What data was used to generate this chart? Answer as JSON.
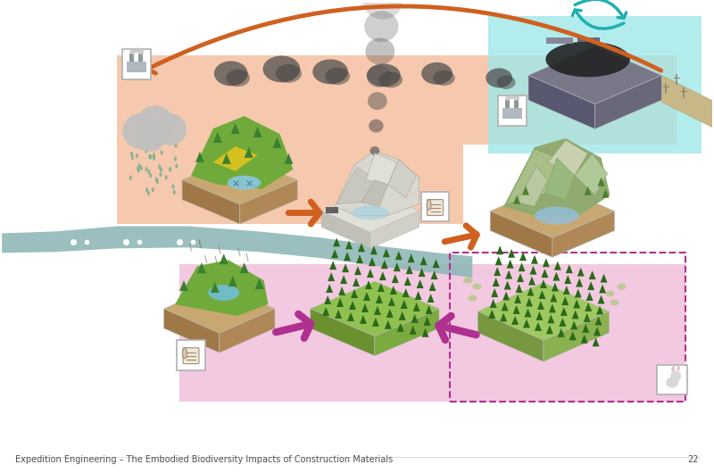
{
  "background_color": "#ffffff",
  "salmon_bg": "#f5c0a0",
  "pink_bg": "#f0b8d8",
  "cyan_bg": "#a0e8e8",
  "footer_text": "Expedition Engineering – The Embodied Biodiversity Impacts of Construction Materials",
  "page_number": "22",
  "footer_fontsize": 7,
  "arrow_orange": "#d06020",
  "arrow_pink": "#b03090",
  "arrow_cyan": "#20b0b0",
  "ground_brown": "#c0986a",
  "ground_left": "#a07850",
  "ground_right": "#b08860",
  "grass_top": "#88bb50",
  "water_river": "#90b8b8",
  "cloud_gray": "#b0b0b0",
  "rain_color": "#78b090",
  "smoke_dark": "#505050",
  "rock_light": "#e8e8e0",
  "rock_mid": "#d0d0c8",
  "icon_bg": "#ffffff",
  "icon_border": "#b0b0b0"
}
